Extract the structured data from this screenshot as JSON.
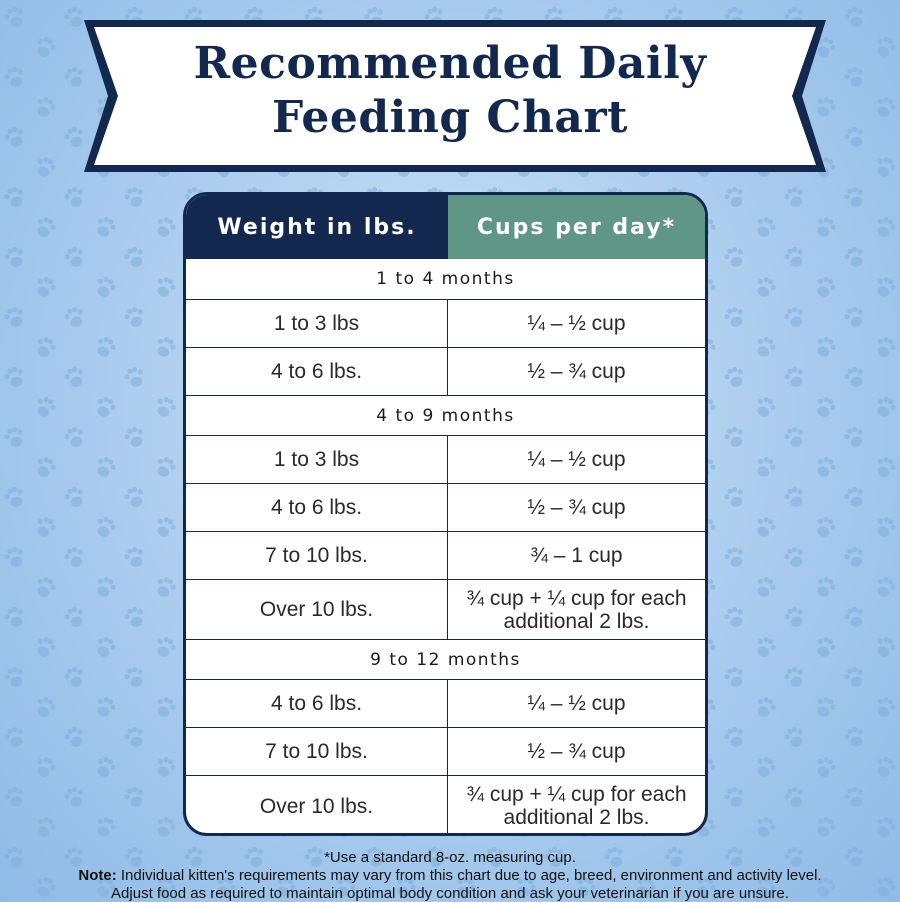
{
  "title": {
    "line1": "Recommended Daily",
    "line2": "Feeding Chart"
  },
  "table": {
    "headers": {
      "weight": "Weight in lbs.",
      "cups": "Cups per day*"
    },
    "sections": [
      {
        "label": "1 to 4 months",
        "rows": [
          {
            "weight": "1 to 3 lbs",
            "cups": "¼ – ½ cup"
          },
          {
            "weight": "4 to 6 lbs.",
            "cups": "½ – ¾ cup"
          }
        ]
      },
      {
        "label": "4 to 9 months",
        "rows": [
          {
            "weight": "1 to 3 lbs",
            "cups": "¼ – ½ cup"
          },
          {
            "weight": "4 to 6 lbs.",
            "cups": "½ – ¾ cup"
          },
          {
            "weight": "7 to 10 lbs.",
            "cups": "¾ – 1 cup"
          },
          {
            "weight": "Over 10 lbs.",
            "cups": "¾ cup + ¼ cup for each additional 2 lbs."
          }
        ]
      },
      {
        "label": "9 to 12 months",
        "rows": [
          {
            "weight": "4 to 6 lbs.",
            "cups": "¼ – ½ cup"
          },
          {
            "weight": "7 to 10 lbs.",
            "cups": "½ – ¾ cup"
          },
          {
            "weight": "Over 10 lbs.",
            "cups": "¾ cup + ¼ cup for each additional 2 lbs."
          }
        ]
      }
    ]
  },
  "footnote": {
    "measure": "*Use a standard 8-oz. measuring cup.",
    "note_label": "Note:",
    "note_text": " Individual kitten's requirements may vary from this chart due to age, breed, environment and activity level.",
    "note_line2": "Adjust food as required to maintain optimal body condition and ask  your veterinarian if you are unsure."
  },
  "colors": {
    "navy": "#13284f",
    "teal": "#5f9686",
    "background": "#a9cbee"
  }
}
